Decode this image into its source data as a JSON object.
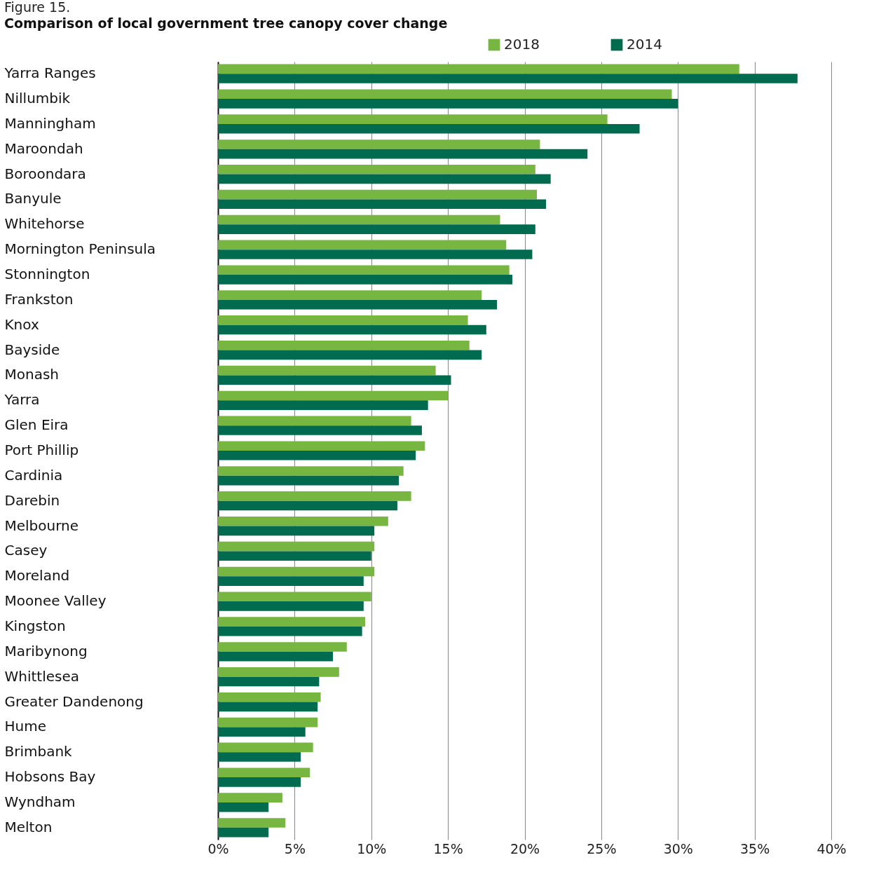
{
  "chart_data": {
    "type": "bar",
    "orientation": "horizontal",
    "title": "Figure 15.",
    "subtitle": "Comparison of local government tree canopy cover change",
    "categories": [
      "Yarra Ranges",
      "Nillumbik",
      "Manningham",
      "Maroondah",
      "Boroondara",
      "Banyule",
      "Whitehorse",
      "Mornington Peninsula",
      "Stonnington",
      "Frankston",
      "Knox",
      "Bayside",
      "Monash",
      "Yarra",
      "Glen Eira",
      "Port Phillip",
      "Cardinia",
      "Darebin",
      "Melbourne",
      "Casey",
      "Moreland",
      "Moonee Valley",
      "Kingston",
      "Maribynong",
      "Whittlesea",
      "Greater Dandenong",
      "Hume",
      "Brimbank",
      "Hobsons Bay",
      "Wyndham",
      "Melton"
    ],
    "series": [
      {
        "name": "2018",
        "color": "#76b641",
        "values": [
          34.0,
          29.6,
          25.4,
          21.0,
          20.7,
          20.8,
          18.4,
          18.8,
          19.0,
          17.2,
          16.3,
          16.4,
          14.2,
          15.0,
          12.6,
          13.5,
          12.1,
          12.6,
          11.1,
          10.2,
          10.2,
          10.0,
          9.6,
          8.4,
          7.9,
          6.7,
          6.5,
          6.2,
          6.0,
          4.2,
          4.4
        ]
      },
      {
        "name": "2014",
        "color": "#006b4f",
        "values": [
          37.8,
          30.0,
          27.5,
          24.1,
          21.7,
          21.4,
          20.7,
          20.5,
          19.2,
          18.2,
          17.5,
          17.2,
          15.2,
          13.7,
          13.3,
          12.9,
          11.8,
          11.7,
          10.2,
          10.0,
          9.5,
          9.5,
          9.4,
          7.5,
          6.6,
          6.5,
          5.7,
          5.4,
          5.4,
          3.3,
          3.3
        ]
      }
    ],
    "xlim": [
      0,
      40
    ],
    "xticks": [
      {
        "value": 0,
        "label": "0%"
      },
      {
        "value": 5,
        "label": "5%"
      },
      {
        "value": 10,
        "label": "10%"
      },
      {
        "value": 15,
        "label": "15%"
      },
      {
        "value": 20,
        "label": "20%"
      },
      {
        "value": 25,
        "label": "25%"
      },
      {
        "value": 30,
        "label": "30%"
      },
      {
        "value": 35,
        "label": "35%"
      },
      {
        "value": 40,
        "label": "40%"
      }
    ],
    "grid": "x",
    "legend": "top right"
  }
}
